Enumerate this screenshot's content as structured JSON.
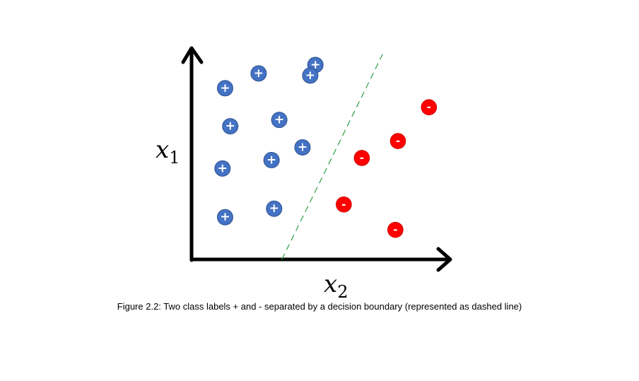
{
  "axes": {
    "y_label": {
      "var": "x",
      "sub": "1"
    },
    "x_label": {
      "var": "x",
      "sub": "2"
    }
  },
  "caption": "Figure 2.2:  Two class labels + and - separated by a decision boundary (represented as dashed line)",
  "classes": {
    "positive": {
      "symbol": "+",
      "color": "#4472C4"
    },
    "negative": {
      "symbol": "-",
      "color": "#FF0000"
    }
  },
  "boundary_color": "#2E9E46",
  "chart_data": {
    "type": "scatter",
    "xlabel": "x2",
    "ylabel": "x1",
    "x_range": [
      0,
      100
    ],
    "y_range": [
      0,
      100
    ],
    "series": [
      {
        "name": "+",
        "points": [
          [
            13,
            81
          ],
          [
            26,
            88
          ],
          [
            48,
            92
          ],
          [
            15,
            63
          ],
          [
            34,
            66
          ],
          [
            12,
            43
          ],
          [
            31,
            47
          ],
          [
            43,
            53
          ],
          [
            13,
            20
          ],
          [
            32,
            24
          ],
          [
            46,
            87
          ]
        ]
      },
      {
        "name": "-",
        "points": [
          [
            92,
            72
          ],
          [
            80,
            56
          ],
          [
            66,
            48
          ],
          [
            59,
            26
          ],
          [
            79,
            14
          ]
        ]
      }
    ],
    "decision_boundary": {
      "style": "dashed",
      "from": [
        35,
        0
      ],
      "to": [
        74,
        97
      ]
    }
  }
}
